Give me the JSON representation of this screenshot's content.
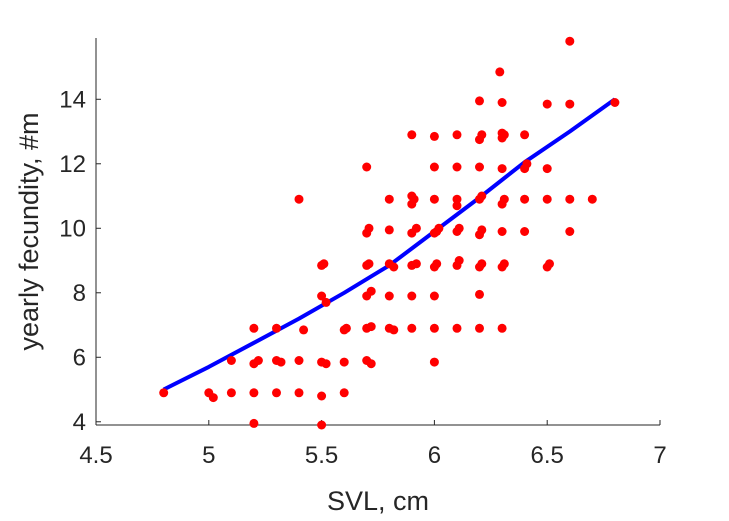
{
  "chart_data": {
    "type": "scatter",
    "xlabel": "SVL, cm",
    "ylabel": "yearly fecundity, #m",
    "xlim": [
      4.5,
      7
    ],
    "ylim": [
      3.9,
      15.9
    ],
    "xticks": [
      "4.5",
      "5",
      "5.5",
      "6",
      "6.5",
      "7"
    ],
    "yticks": [
      "4",
      "6",
      "8",
      "10",
      "12",
      "14"
    ],
    "grid": false,
    "legend": "none",
    "series": [
      {
        "kind": "points",
        "color": "#ff0000",
        "points": [
          [
            4.8,
            4.9
          ],
          [
            5.0,
            4.9
          ],
          [
            5.02,
            4.75
          ],
          [
            5.1,
            4.9
          ],
          [
            5.1,
            5.9
          ],
          [
            5.2,
            3.95
          ],
          [
            5.2,
            4.9
          ],
          [
            5.2,
            5.8
          ],
          [
            5.22,
            5.9
          ],
          [
            5.2,
            6.9
          ],
          [
            5.3,
            4.9
          ],
          [
            5.3,
            5.9
          ],
          [
            5.32,
            5.85
          ],
          [
            5.3,
            6.9
          ],
          [
            5.4,
            4.9
          ],
          [
            5.4,
            5.9
          ],
          [
            5.4,
            10.9
          ],
          [
            5.42,
            6.85
          ],
          [
            5.5,
            3.9
          ],
          [
            5.5,
            4.8
          ],
          [
            5.5,
            5.85
          ],
          [
            5.52,
            5.8
          ],
          [
            5.5,
            7.9
          ],
          [
            5.52,
            7.7
          ],
          [
            5.5,
            8.85
          ],
          [
            5.51,
            8.9
          ],
          [
            5.6,
            4.9
          ],
          [
            5.6,
            5.85
          ],
          [
            5.6,
            6.85
          ],
          [
            5.61,
            6.9
          ],
          [
            5.7,
            5.9
          ],
          [
            5.72,
            5.8
          ],
          [
            5.7,
            6.9
          ],
          [
            5.72,
            6.95
          ],
          [
            5.7,
            7.9
          ],
          [
            5.72,
            8.05
          ],
          [
            5.7,
            8.85
          ],
          [
            5.71,
            8.9
          ],
          [
            5.7,
            9.85
          ],
          [
            5.71,
            10.0
          ],
          [
            5.7,
            11.9
          ],
          [
            5.8,
            6.9
          ],
          [
            5.82,
            6.85
          ],
          [
            5.8,
            7.9
          ],
          [
            5.8,
            8.9
          ],
          [
            5.82,
            8.8
          ],
          [
            5.8,
            9.95
          ],
          [
            5.8,
            10.9
          ],
          [
            5.9,
            6.9
          ],
          [
            5.9,
            7.9
          ],
          [
            5.9,
            8.85
          ],
          [
            5.92,
            8.9
          ],
          [
            5.9,
            9.85
          ],
          [
            5.92,
            10.0
          ],
          [
            5.9,
            10.75
          ],
          [
            5.91,
            10.9
          ],
          [
            5.9,
            11.0
          ],
          [
            5.9,
            12.9
          ],
          [
            6.0,
            5.85
          ],
          [
            6.0,
            6.9
          ],
          [
            6.0,
            7.9
          ],
          [
            6.0,
            8.8
          ],
          [
            6.01,
            8.9
          ],
          [
            6.0,
            9.85
          ],
          [
            6.01,
            9.9
          ],
          [
            6.02,
            10.0
          ],
          [
            6.0,
            10.9
          ],
          [
            6.0,
            11.9
          ],
          [
            6.0,
            12.85
          ],
          [
            6.1,
            6.9
          ],
          [
            6.1,
            8.85
          ],
          [
            6.11,
            9.0
          ],
          [
            6.1,
            9.9
          ],
          [
            6.11,
            10.0
          ],
          [
            6.1,
            10.7
          ],
          [
            6.1,
            10.9
          ],
          [
            6.1,
            11.9
          ],
          [
            6.1,
            12.9
          ],
          [
            6.2,
            6.9
          ],
          [
            6.2,
            7.95
          ],
          [
            6.2,
            8.8
          ],
          [
            6.21,
            8.9
          ],
          [
            6.2,
            9.8
          ],
          [
            6.21,
            9.95
          ],
          [
            6.2,
            10.9
          ],
          [
            6.21,
            11.0
          ],
          [
            6.2,
            11.9
          ],
          [
            6.2,
            12.75
          ],
          [
            6.21,
            12.9
          ],
          [
            6.2,
            13.95
          ],
          [
            6.3,
            6.9
          ],
          [
            6.3,
            8.8
          ],
          [
            6.31,
            8.9
          ],
          [
            6.3,
            9.9
          ],
          [
            6.3,
            10.75
          ],
          [
            6.31,
            10.9
          ],
          [
            6.3,
            11.85
          ],
          [
            6.3,
            12.8
          ],
          [
            6.31,
            12.9
          ],
          [
            6.3,
            13.9
          ],
          [
            6.29,
            14.85
          ],
          [
            6.3,
            12.95
          ],
          [
            6.4,
            9.9
          ],
          [
            6.4,
            10.9
          ],
          [
            6.4,
            11.85
          ],
          [
            6.41,
            12.0
          ],
          [
            6.4,
            12.9
          ],
          [
            6.5,
            8.8
          ],
          [
            6.51,
            8.9
          ],
          [
            6.5,
            10.9
          ],
          [
            6.5,
            11.85
          ],
          [
            6.5,
            13.85
          ],
          [
            6.6,
            9.9
          ],
          [
            6.6,
            10.9
          ],
          [
            6.6,
            13.85
          ],
          [
            6.6,
            15.8
          ],
          [
            6.7,
            10.9
          ],
          [
            6.8,
            13.9
          ]
        ]
      },
      {
        "kind": "curve",
        "color": "#0000ff",
        "points": [
          [
            4.8,
            5.0
          ],
          [
            5.0,
            5.7
          ],
          [
            5.2,
            6.45
          ],
          [
            5.4,
            7.2
          ],
          [
            5.6,
            8.0
          ],
          [
            5.8,
            8.85
          ],
          [
            6.0,
            9.9
          ],
          [
            6.2,
            10.95
          ],
          [
            6.4,
            12.05
          ],
          [
            6.6,
            13.0
          ],
          [
            6.8,
            14.0
          ]
        ]
      }
    ]
  }
}
